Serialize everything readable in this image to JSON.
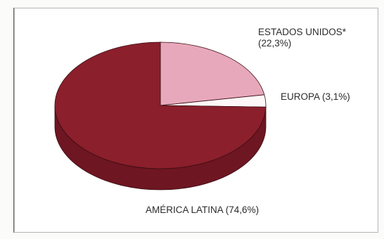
{
  "chart_data": {
    "type": "pie",
    "three_d": true,
    "title": "",
    "slices": [
      {
        "label": "ESTADOS UNIDOS*",
        "value_label": "(22,3%)",
        "value": 22.3,
        "color": "#e8a8bb"
      },
      {
        "label": "EUROPA",
        "value_label": "(3,1%)",
        "value": 3.1,
        "color": "#fdf7f7"
      },
      {
        "label": "AMÉRICA LATINA",
        "value_label": "(74,6%)",
        "value": 74.6,
        "color": "#8b1f2c"
      }
    ],
    "legend": "none"
  },
  "colors": {
    "latin_america_side": "#6e1622",
    "outline": "#3a0d12"
  }
}
